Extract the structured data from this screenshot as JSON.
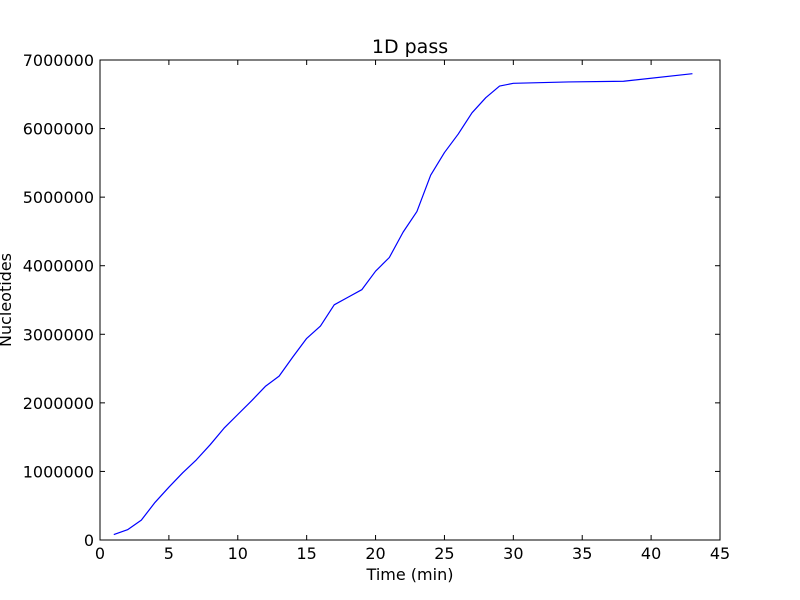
{
  "chart_data": {
    "type": "line",
    "title": "1D pass",
    "xlabel": "Time (min)",
    "ylabel": "Nucleotides",
    "xlim": [
      0,
      45
    ],
    "ylim": [
      0,
      7000000
    ],
    "xticks": [
      0,
      5,
      10,
      15,
      20,
      25,
      30,
      35,
      40,
      45
    ],
    "yticks": [
      0,
      1000000,
      2000000,
      3000000,
      4000000,
      5000000,
      6000000,
      7000000
    ],
    "grid": false,
    "legend": "none",
    "series": [
      {
        "color": "#0000ff",
        "x": [
          1,
          2,
          3,
          4,
          5,
          6,
          7,
          8,
          9,
          10,
          11,
          12,
          13,
          14,
          15,
          16,
          17,
          18,
          19,
          20,
          21,
          22,
          23,
          24,
          25,
          26,
          27,
          28,
          29,
          30,
          34,
          38,
          43
        ],
        "y": [
          80000,
          150000,
          290000,
          550000,
          770000,
          980000,
          1170000,
          1390000,
          1630000,
          1830000,
          2030000,
          2240000,
          2390000,
          2670000,
          2940000,
          3120000,
          3430000,
          3540000,
          3650000,
          3920000,
          4120000,
          4490000,
          4790000,
          5320000,
          5650000,
          5920000,
          6230000,
          6450000,
          6620000,
          6660000,
          6680000,
          6690000,
          6800000
        ]
      }
    ]
  }
}
